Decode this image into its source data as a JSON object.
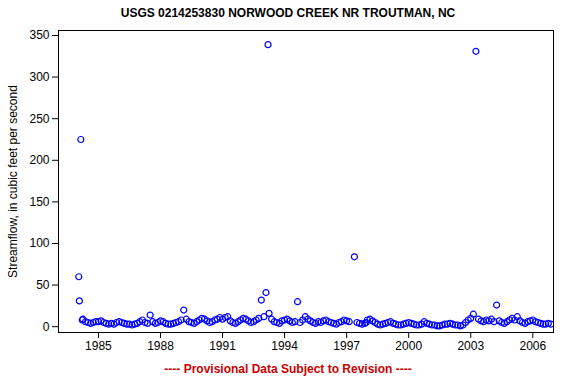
{
  "chart_data": {
    "type": "scatter",
    "title": "USGS 0214253830 NORWOOD CREEK NR TROUTMAN, NC",
    "caption": "---- Provisional Data Subject to Revision ----",
    "y_label": "Streamflow, in cubic feet per second",
    "marker": "circle",
    "color": "#0000ff",
    "grid": false,
    "xlim": [
      1983.07,
      2007.0
    ],
    "xticks": [
      1985,
      1988,
      1991,
      1994,
      1997,
      2000,
      2003,
      2006
    ],
    "ylim": [
      -7,
      356
    ],
    "yticks": [
      0,
      50,
      100,
      150,
      200,
      250,
      300,
      350
    ],
    "x": [
      1984.05,
      1984.08,
      1984.15,
      1984.22,
      1984.25,
      1984.375,
      1984.5,
      1984.625,
      1984.75,
      1984.875,
      1985.0,
      1985.125,
      1985.25,
      1985.375,
      1985.5,
      1985.625,
      1985.75,
      1985.875,
      1986.0,
      1986.125,
      1986.25,
      1986.375,
      1986.5,
      1986.625,
      1986.75,
      1986.875,
      1987.0,
      1987.125,
      1987.25,
      1987.375,
      1987.5,
      1987.625,
      1987.75,
      1987.875,
      1988.0,
      1988.125,
      1988.25,
      1988.375,
      1988.5,
      1988.625,
      1988.75,
      1988.875,
      1989.0,
      1989.125,
      1989.25,
      1989.375,
      1989.5,
      1989.625,
      1989.75,
      1989.875,
      1990.0,
      1990.125,
      1990.25,
      1990.375,
      1990.5,
      1990.625,
      1990.75,
      1990.875,
      1991.0,
      1991.125,
      1991.25,
      1991.375,
      1991.5,
      1991.625,
      1991.75,
      1991.875,
      1992.0,
      1992.125,
      1992.25,
      1992.375,
      1992.5,
      1992.625,
      1992.75,
      1992.875,
      1993.0,
      1993.1,
      1993.2,
      1993.25,
      1993.375,
      1993.5,
      1993.625,
      1993.75,
      1993.875,
      1994.0,
      1994.125,
      1994.25,
      1994.375,
      1994.5,
      1994.625,
      1994.75,
      1994.875,
      1995.0,
      1995.125,
      1995.25,
      1995.375,
      1995.5,
      1995.625,
      1995.75,
      1995.875,
      1996.0,
      1996.125,
      1996.25,
      1996.375,
      1996.5,
      1996.625,
      1996.75,
      1996.875,
      1997.0,
      1997.125,
      1997.375,
      1997.5,
      1997.625,
      1997.75,
      1997.875,
      1997.95,
      1998.0,
      1998.125,
      1998.25,
      1998.375,
      1998.5,
      1998.625,
      1998.75,
      1998.875,
      1999.0,
      1999.125,
      1999.25,
      1999.375,
      1999.5,
      1999.625,
      1999.75,
      1999.875,
      2000.0,
      2000.125,
      2000.25,
      2000.375,
      2000.5,
      2000.625,
      2000.75,
      2000.875,
      2001.0,
      2001.125,
      2001.25,
      2001.375,
      2001.5,
      2001.625,
      2001.75,
      2001.875,
      2002.0,
      2002.125,
      2002.25,
      2002.375,
      2002.5,
      2002.625,
      2002.75,
      2002.875,
      2003.0,
      2003.125,
      2003.25,
      2003.375,
      2003.5,
      2003.625,
      2003.75,
      2003.875,
      2004.0,
      2004.125,
      2004.25,
      2004.375,
      2004.5,
      2004.625,
      2004.75,
      2004.875,
      2005.0,
      2005.125,
      2005.25,
      2005.375,
      2005.5,
      2005.625,
      2005.75,
      2005.875,
      2006.0,
      2006.125,
      2006.25,
      2006.375,
      2006.5,
      2006.625,
      2006.75,
      2006.875
    ],
    "values": [
      60,
      31,
      225,
      8,
      9,
      6,
      5,
      4,
      5,
      6,
      6,
      7,
      5,
      4,
      3,
      4,
      3,
      5,
      6,
      5,
      4,
      3,
      3,
      2,
      3,
      4,
      6,
      8,
      5,
      4,
      14,
      6,
      4,
      5,
      7,
      6,
      4,
      3,
      3,
      4,
      5,
      6,
      8,
      20,
      9,
      6,
      5,
      4,
      6,
      8,
      10,
      9,
      7,
      5,
      6,
      8,
      9,
      11,
      9,
      11,
      12,
      7,
      5,
      4,
      6,
      8,
      10,
      9,
      7,
      5,
      6,
      8,
      10,
      32,
      12,
      41,
      339,
      16,
      9,
      6,
      5,
      4,
      7,
      8,
      9,
      7,
      5,
      6,
      30,
      5,
      8,
      12,
      9,
      7,
      5,
      4,
      6,
      5,
      7,
      8,
      6,
      5,
      4,
      3,
      5,
      6,
      8,
      7,
      6,
      84,
      5,
      4,
      3,
      4,
      5,
      8,
      9,
      7,
      5,
      3,
      2,
      3,
      4,
      5,
      6,
      4,
      3,
      2,
      2,
      3,
      4,
      5,
      4,
      3,
      2,
      2,
      3,
      6,
      4,
      3,
      2,
      2,
      1,
      1,
      2,
      3,
      3,
      4,
      3,
      2,
      2,
      1,
      2,
      5,
      8,
      10,
      15,
      331,
      9,
      7,
      6,
      8,
      7,
      9,
      6,
      26,
      7,
      5,
      4,
      6,
      8,
      10,
      8,
      12,
      7,
      5,
      4,
      6,
      7,
      8,
      6,
      5,
      4,
      3,
      3,
      4,
      3
    ]
  }
}
